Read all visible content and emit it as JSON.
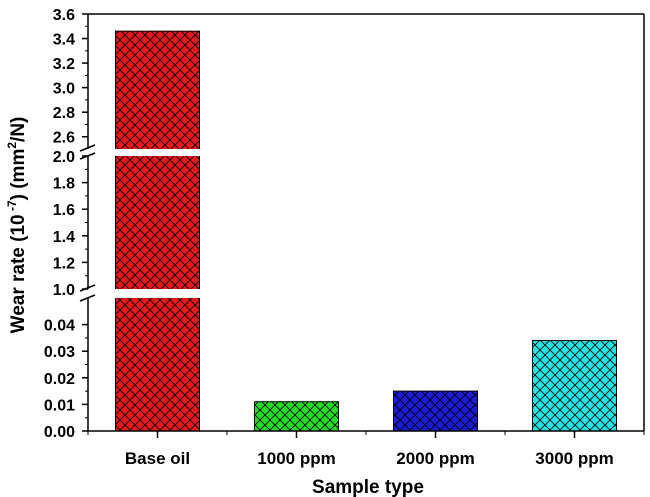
{
  "chart_data": {
    "type": "bar",
    "categories": [
      "Base oil",
      "1000 ppm",
      "2000 ppm",
      "3000 ppm"
    ],
    "values": [
      3.46,
      0.011,
      0.015,
      0.034
    ],
    "colors": [
      "#e8191c",
      "#22dd22",
      "#1c1cd6",
      "#22e5e5"
    ],
    "pattern": "crosshatch",
    "xlabel": "Sample type",
    "ylabel": {
      "prefix": "Wear rate (10",
      "exponent": " -7",
      "middle": ") (mm",
      "unit_sup": "2",
      "suffix": "/N)"
    },
    "y_scale": "broken",
    "y_segments": [
      {
        "range": [
          0,
          0.05
        ],
        "ticks": [
          "0.00",
          "0.01",
          "0.02",
          "0.03",
          "0.04"
        ]
      },
      {
        "range": [
          1.0,
          2.0
        ],
        "ticks": [
          "1.0",
          "1.2",
          "1.4",
          "1.6",
          "1.8",
          "2.0"
        ]
      },
      {
        "range": [
          2.5,
          3.6
        ],
        "ticks": [
          "2.6",
          "2.8",
          "3.0",
          "3.2",
          "3.4",
          "3.6"
        ]
      }
    ],
    "grid": false,
    "legend": "none"
  }
}
